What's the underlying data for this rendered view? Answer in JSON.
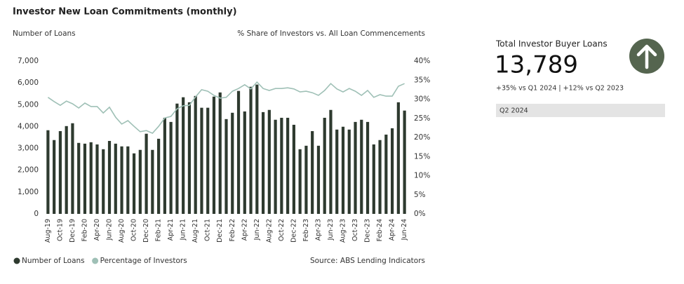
{
  "chart_data": {
    "type": "bar_line",
    "title": "Investor New Loan Commitments (monthly)",
    "y_label": "Number of Loans",
    "y2_label": "% Share of Investors vs. All Loan Commencements",
    "source": "Source: ABS Lending Indicators",
    "categories": [
      "Aug-19",
      null,
      "Oct-19",
      null,
      "Dec-19",
      null,
      "Feb-20",
      null,
      "Apr-20",
      null,
      "Jun-20",
      null,
      "Aug-20",
      null,
      "Oct-20",
      null,
      "Dec-20",
      null,
      "Feb-21",
      null,
      "Apr-21",
      null,
      "Jun-21",
      null,
      "Aug-21",
      null,
      "Oct-21",
      null,
      "Dec-21",
      null,
      "Feb-22",
      null,
      "Apr-22",
      null,
      "Jun-22",
      null,
      "Aug-22",
      null,
      "Oct-22",
      null,
      "Dec-22",
      null,
      "Feb-23",
      null,
      "Apr-23",
      null,
      "Jun-23",
      null,
      "Aug-23",
      null,
      "Oct-23",
      null,
      "Dec-23",
      null,
      "Feb-24",
      null,
      "Apr-24",
      null,
      "Jun-24"
    ],
    "series": [
      {
        "name": "Number of Loans",
        "type": "bar",
        "color": "#2e3a2f",
        "values": [
          3830,
          3380,
          3790,
          4020,
          4150,
          3250,
          3215,
          3280,
          3180,
          2960,
          3340,
          3215,
          3090,
          3090,
          2770,
          2930,
          3670,
          2930,
          3440,
          4400,
          4210,
          5050,
          5340,
          5110,
          5400,
          4860,
          4860,
          5370,
          5560,
          4340,
          4630,
          5630,
          4690,
          5820,
          5920,
          4660,
          4760,
          4310,
          4400,
          4400,
          4080,
          2960,
          3120,
          3790,
          3120,
          4400,
          4760,
          3860,
          3990,
          3860,
          4210,
          4310,
          4210,
          3180,
          3380,
          3630,
          3920,
          5110,
          4730
        ]
      },
      {
        "name": "Percentage of Investors",
        "type": "line",
        "axis": "y2",
        "color": "#9fc0b6",
        "values": [
          30.5,
          29.4,
          28.4,
          29.5,
          28.8,
          27.7,
          29,
          28.1,
          28.1,
          26.4,
          27.9,
          25.3,
          23.5,
          24.4,
          22.9,
          21.5,
          21.8,
          21.1,
          22.9,
          25.1,
          25.5,
          27.5,
          28.3,
          28.4,
          30.6,
          32.5,
          32.1,
          31,
          30.3,
          30.5,
          32.1,
          32.8,
          33.8,
          32.7,
          34.5,
          32.8,
          32.3,
          32.8,
          32.8,
          33,
          32.7,
          31.9,
          32.1,
          31.7,
          31,
          32.3,
          34.1,
          32.7,
          31.9,
          32.8,
          32.1,
          31,
          32.3,
          30.5,
          31.2,
          30.8,
          30.8,
          33.4,
          34.1
        ]
      }
    ],
    "ylim": [
      0,
      7000
    ],
    "yticks": [
      0,
      {
        "value": 1000,
        "label": "1,000"
      },
      {
        "value": 2000,
        "label": "2,000"
      },
      {
        "value": 3000,
        "label": "3,000"
      },
      {
        "value": 4000,
        "label": "4,000"
      },
      {
        "value": 5000,
        "label": "5,000"
      },
      {
        "value": 6000,
        "label": "6,000"
      },
      {
        "value": 7000,
        "label": "7,000"
      }
    ],
    "y2lim": [
      0,
      40
    ],
    "y2ticks": [
      {
        "value": 0,
        "label": "0%"
      },
      {
        "value": 5,
        "label": "5%"
      },
      {
        "value": 10,
        "label": "10%"
      },
      {
        "value": 15,
        "label": "15%"
      },
      {
        "value": 20,
        "label": "20%"
      },
      {
        "value": 25,
        "label": "25%"
      },
      {
        "value": 30,
        "label": "30%"
      },
      {
        "value": 35,
        "label": "35%"
      },
      {
        "value": 40,
        "label": "40%"
      }
    ],
    "grid": false,
    "legend": "bottom-left"
  },
  "panel": {
    "label": "Total Investor Buyer Loans",
    "value": "13,789",
    "change": "+35% vs Q1 2024 | +12% vs Q2 2023",
    "period": "Q2 2024"
  }
}
